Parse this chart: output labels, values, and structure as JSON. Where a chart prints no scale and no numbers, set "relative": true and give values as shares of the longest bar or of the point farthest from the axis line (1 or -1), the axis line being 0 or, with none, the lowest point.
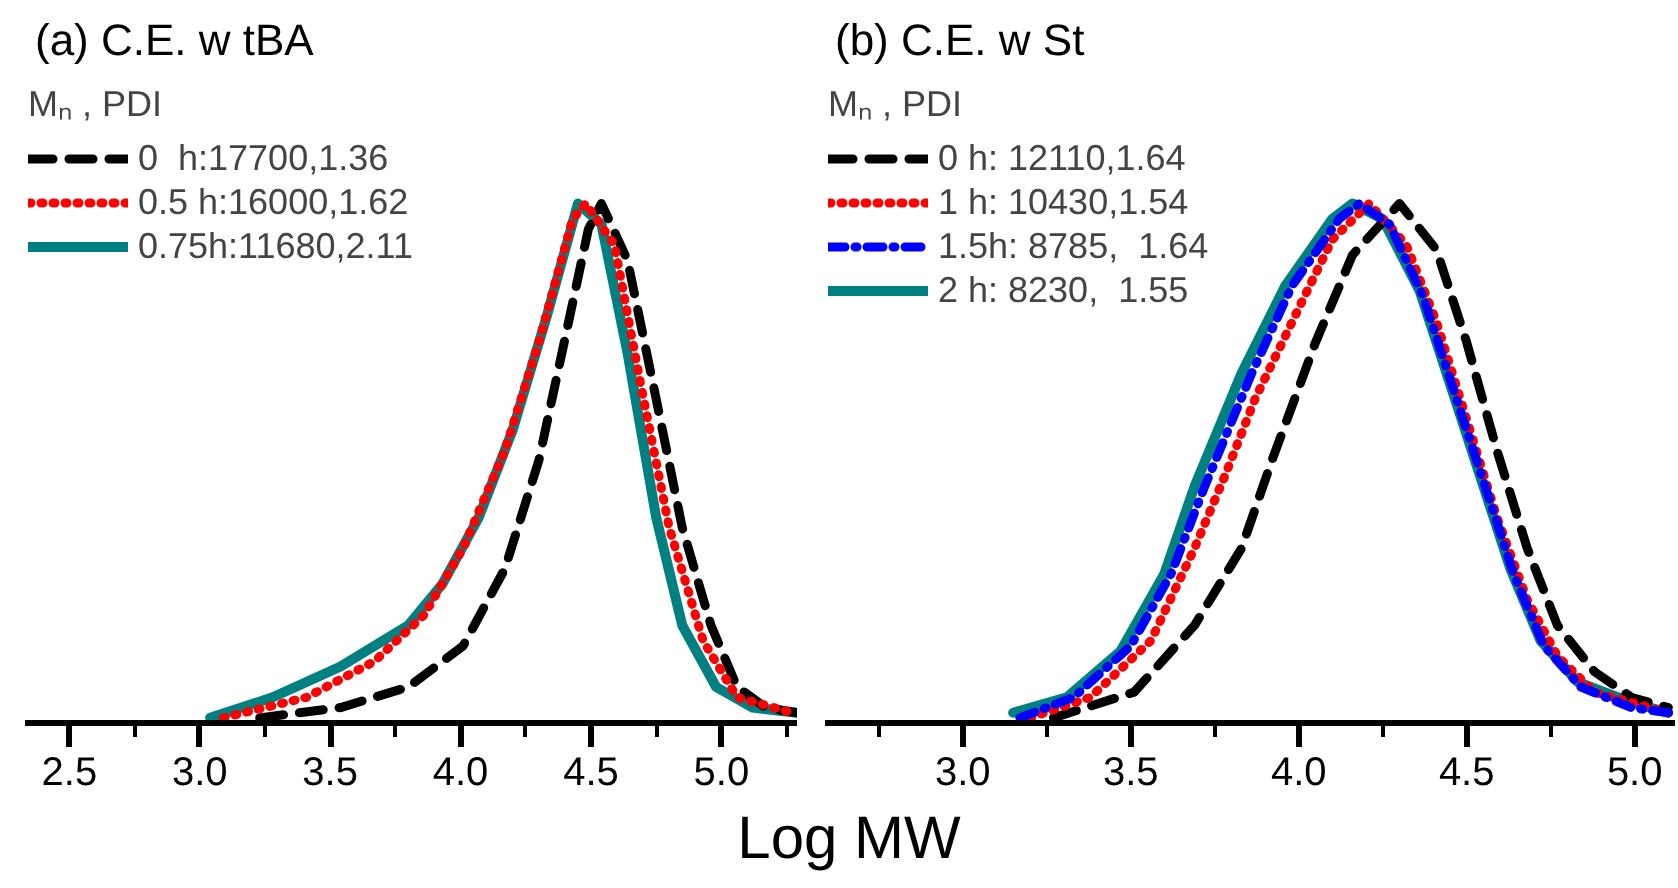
{
  "chart_data": [
    {
      "type": "line",
      "title": "(a) C.E. w tBA",
      "xlabel": "Log MW",
      "legend_title": "Mₙ , PDI",
      "relative": true,
      "legend": "top left",
      "grid": false,
      "xlim": [
        2.33,
        5.29
      ],
      "xticks": [
        2.5,
        {
          "value": 2.75,
          "label": null
        },
        {
          "value": 3,
          "label": "3.0"
        },
        {
          "value": 3.25,
          "label": null
        },
        3.5,
        {
          "value": 3.75,
          "label": null
        },
        {
          "value": 4,
          "label": "4.0"
        },
        {
          "value": 4.25,
          "label": null
        },
        4.5,
        {
          "value": 4.75,
          "label": null
        },
        {
          "value": 5,
          "label": "5.0"
        },
        {
          "value": 5.25,
          "label": null
        }
      ],
      "series": [
        {
          "name": "0  h:17700,1.36",
          "color": "#000000",
          "line_style": "dashed",
          "x": [
            3.23,
            3.54,
            3.8,
            4.01,
            4.17,
            4.3,
            4.41,
            4.49,
            4.54,
            4.64,
            4.75,
            4.85,
            4.96,
            5.06,
            5.17,
            5.29
          ],
          "values": [
            0,
            0.02,
            0.06,
            0.14,
            0.29,
            0.5,
            0.76,
            0.95,
            1.0,
            0.89,
            0.62,
            0.37,
            0.18,
            0.06,
            0.02,
            0.01
          ]
        },
        {
          "name": "0.5 h:16000,1.62",
          "color": "#ff0000",
          "line_style": "dotted",
          "x": [
            3.09,
            3.41,
            3.67,
            3.86,
            4.01,
            4.17,
            4.3,
            4.43,
            4.48,
            4.59,
            4.69,
            4.8,
            4.93,
            5.06,
            5.27
          ],
          "values": [
            0,
            0.04,
            0.11,
            0.2,
            0.33,
            0.52,
            0.73,
            0.97,
            1.0,
            0.92,
            0.65,
            0.37,
            0.15,
            0.04,
            0.01
          ]
        },
        {
          "name": "0.75h:11680,2.11",
          "color": "#008080",
          "line_style": "solid",
          "x": [
            3.04,
            3.28,
            3.54,
            3.8,
            3.93,
            4.07,
            4.2,
            4.33,
            4.45,
            4.54,
            4.64,
            4.75,
            4.85,
            4.98,
            5.12,
            5.29
          ],
          "values": [
            0,
            0.04,
            0.1,
            0.18,
            0.26,
            0.39,
            0.56,
            0.78,
            1.0,
            0.96,
            0.71,
            0.39,
            0.18,
            0.06,
            0.02,
            0.01
          ]
        }
      ]
    },
    {
      "type": "line",
      "title": "(b) C.E. w St",
      "legend_title": "Mₙ , PDI",
      "relative": true,
      "legend": "top left",
      "grid": false,
      "xlim": [
        2.59,
        5.12
      ],
      "xticks": [
        {
          "value": 2.75,
          "label": null
        },
        {
          "value": 3,
          "label": "3.0"
        },
        {
          "value": 3.25,
          "label": null
        },
        3.5,
        {
          "value": 3.75,
          "label": null
        },
        {
          "value": 4,
          "label": "4.0"
        },
        {
          "value": 4.25,
          "label": null
        },
        4.5,
        {
          "value": 4.75,
          "label": null
        },
        {
          "value": 5,
          "label": "5.0"
        }
      ],
      "series": [
        {
          "name": "0 h: 12110,1.64",
          "color": "#000000",
          "line_style": "dashed",
          "x": [
            3.27,
            3.51,
            3.69,
            3.83,
            3.92,
            4.05,
            4.16,
            4.3,
            4.41,
            4.5,
            4.59,
            4.68,
            4.77,
            4.88,
            4.99,
            5.1
          ],
          "values": [
            0,
            0.05,
            0.18,
            0.33,
            0.5,
            0.73,
            0.9,
            1.0,
            0.91,
            0.73,
            0.52,
            0.33,
            0.18,
            0.09,
            0.04,
            0.02
          ]
        },
        {
          "name": "1 h: 10430,1.54",
          "color": "#ff0000",
          "line_style": "dotted",
          "x": [
            3.2,
            3.38,
            3.56,
            3.69,
            3.78,
            3.87,
            4.01,
            4.1,
            4.21,
            4.32,
            4.41,
            4.5,
            4.59,
            4.68,
            4.77,
            4.88,
            5.1
          ],
          "values": [
            0,
            0.04,
            0.15,
            0.33,
            0.47,
            0.62,
            0.81,
            0.93,
            1.0,
            0.92,
            0.77,
            0.58,
            0.39,
            0.23,
            0.12,
            0.05,
            0.01
          ]
        },
        {
          "name": "1.5h: 8785,  1.64",
          "color": "#0000ff",
          "line_style": "dashdot",
          "x": [
            3.17,
            3.33,
            3.5,
            3.62,
            3.72,
            3.86,
            3.98,
            4.12,
            4.18,
            4.27,
            4.37,
            4.46,
            4.55,
            4.64,
            4.73,
            4.84,
            4.99,
            5.1
          ],
          "values": [
            0,
            0.04,
            0.14,
            0.28,
            0.45,
            0.67,
            0.84,
            0.97,
            1.0,
            0.96,
            0.82,
            0.64,
            0.46,
            0.28,
            0.14,
            0.06,
            0.02,
            0.01
          ]
        },
        {
          "name": "2 h: 8230,  1.55",
          "color": "#008080",
          "line_style": "solid",
          "x": [
            3.15,
            3.31,
            3.47,
            3.6,
            3.69,
            3.83,
            3.96,
            4.1,
            4.16,
            4.25,
            4.36,
            4.45,
            4.54,
            4.63,
            4.72,
            4.83,
            4.99,
            5.1
          ],
          "values": [
            0.01,
            0.04,
            0.13,
            0.28,
            0.45,
            0.67,
            0.84,
            0.97,
            1.0,
            0.97,
            0.83,
            0.65,
            0.47,
            0.29,
            0.15,
            0.07,
            0.03,
            0.01
          ]
        }
      ]
    }
  ]
}
